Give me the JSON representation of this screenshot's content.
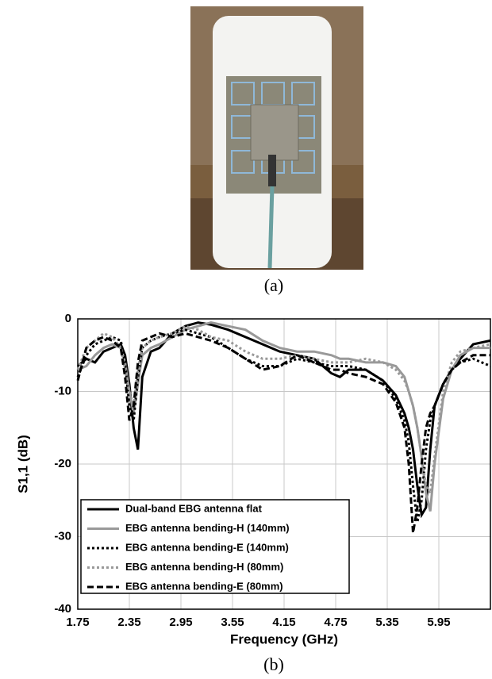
{
  "captions": [
    "(a)",
    "(b)"
  ],
  "chart_data": {
    "type": "line",
    "xlabel": "Frequency (GHz)",
    "ylabel": "S1,1 (dB)",
    "x": [
      1.75,
      1.85,
      1.95,
      2.05,
      2.15,
      2.25,
      2.3,
      2.35,
      2.4,
      2.45,
      2.5,
      2.6,
      2.7,
      2.85,
      3.0,
      3.15,
      3.3,
      3.5,
      3.7,
      3.9,
      4.1,
      4.3,
      4.5,
      4.7,
      4.8,
      4.9,
      5.1,
      5.3,
      5.45,
      5.55,
      5.6,
      5.65,
      5.7,
      5.75,
      5.8,
      5.85,
      5.9,
      6.0,
      6.1,
      6.2,
      6.35,
      6.55
    ],
    "series": [
      {
        "name": "Dual-band EBG antenna flat",
        "color": "#000000",
        "dash": "solid",
        "values": [
          -6.5,
          -5.5,
          -6,
          -4.5,
          -4,
          -3.5,
          -5,
          -9,
          -15,
          -18,
          -8,
          -4.5,
          -4,
          -2,
          -1,
          -0.5,
          -0.8,
          -1.5,
          -2.5,
          -3.5,
          -4.5,
          -5,
          -5.5,
          -7.5,
          -8,
          -7,
          -7,
          -8.5,
          -10.5,
          -13,
          -15,
          -18,
          -23,
          -27,
          -26,
          -18,
          -12,
          -9,
          -7,
          -5.5,
          -3.5,
          -3
        ]
      },
      {
        "name": "EBG antenna bending-H (140mm)",
        "color": "#999999",
        "dash": "solid",
        "values": [
          -7,
          -6.5,
          -5,
          -4,
          -3.5,
          -4,
          -6,
          -10,
          -13,
          -9,
          -5,
          -4,
          -3.5,
          -2.5,
          -1.5,
          -1,
          -0.5,
          -1,
          -1.5,
          -3,
          -4,
          -4.5,
          -4.5,
          -5,
          -5.5,
          -5.5,
          -6,
          -6,
          -6.5,
          -8,
          -10,
          -12,
          -15,
          -19,
          -24,
          -26.5,
          -20,
          -11,
          -7,
          -5,
          -4,
          -4
        ]
      },
      {
        "name": "EBG antenna bending-E (140mm)",
        "color": "#000000",
        "dash": "dotted",
        "values": [
          -8,
          -5,
          -3.5,
          -3,
          -2.5,
          -3,
          -6,
          -12,
          -14,
          -8,
          -4,
          -3,
          -2.5,
          -2,
          -1.5,
          -2,
          -2.5,
          -4,
          -5.5,
          -6.5,
          -6.5,
          -5.5,
          -6,
          -6.5,
          -6.5,
          -6.5,
          -7,
          -8.5,
          -11,
          -14,
          -17,
          -23,
          -28,
          -25,
          -18,
          -14,
          -12,
          -9,
          -7,
          -6,
          -5.5,
          -6.5
        ]
      },
      {
        "name": "EBG antenna bending-H (80mm)",
        "color": "#999999",
        "dash": "dotted",
        "values": [
          -7,
          -4,
          -3,
          -2,
          -2.5,
          -4,
          -7,
          -10,
          -12,
          -7,
          -4,
          -3,
          -2.5,
          -2,
          -1,
          -1.5,
          -2.5,
          -3,
          -4.5,
          -5.5,
          -5.5,
          -5,
          -5.5,
          -6,
          -6,
          -6,
          -5.5,
          -6,
          -7,
          -8.5,
          -10,
          -12,
          -15,
          -19,
          -23,
          -24,
          -19,
          -10,
          -6,
          -4.5,
          -4,
          -3.5
        ]
      },
      {
        "name": "EBG antenna bending-E (80mm)",
        "color": "#000000",
        "dash": "dashed",
        "values": [
          -8.5,
          -4,
          -3,
          -2.5,
          -3,
          -4,
          -8,
          -14,
          -12,
          -6,
          -3,
          -2.5,
          -2,
          -2.5,
          -2,
          -2.5,
          -3,
          -4,
          -5.5,
          -7,
          -6.5,
          -5,
          -6,
          -7,
          -7,
          -7.5,
          -8,
          -9,
          -11.5,
          -15,
          -20,
          -29.5,
          -26,
          -20,
          -15,
          -13,
          -12,
          -9,
          -7,
          -6,
          -5,
          -5
        ]
      }
    ],
    "xlim": [
      1.75,
      6.55
    ],
    "ylim": [
      -40,
      0
    ],
    "xticks": [
      1.75,
      2.35,
      2.95,
      3.55,
      4.15,
      4.75,
      5.35,
      5.95
    ],
    "yticks": [
      -40,
      -30,
      -20,
      -10,
      0
    ],
    "grid": true,
    "legend": "lower-left"
  }
}
